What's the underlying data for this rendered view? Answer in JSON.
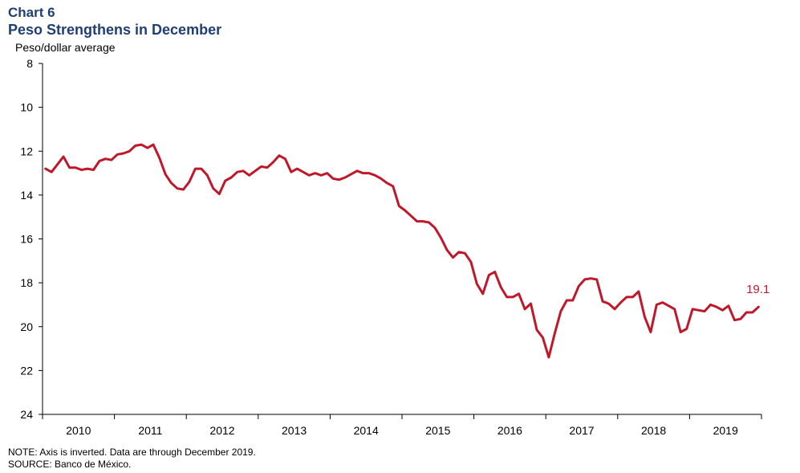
{
  "header": {
    "chart_label": "Chart 6",
    "title": "Peso Strengthens in December"
  },
  "footer": {
    "note": "NOTE: Axis is inverted.  Data are through December 2019.",
    "source": "SOURCE: Banco de México."
  },
  "colors": {
    "series": "#c0182b",
    "title": "#1f3f73"
  },
  "chart_data": {
    "type": "line",
    "ylabel": "Peso/dollar average",
    "ylim": [
      8,
      24
    ],
    "y_inverted": true,
    "yticks": [
      8,
      10,
      12,
      14,
      16,
      18,
      20,
      22,
      24
    ],
    "xlim": [
      "2010-01",
      "2019-12"
    ],
    "xtick_labels": [
      "2010",
      "2011",
      "2012",
      "2013",
      "2014",
      "2015",
      "2016",
      "2017",
      "2018",
      "2019"
    ],
    "grid": false,
    "annotation": "19.1",
    "series": [
      {
        "values": [
          12.8,
          12.95,
          12.6,
          12.25,
          12.75,
          12.75,
          12.85,
          12.8,
          12.85,
          12.45,
          12.35,
          12.4,
          12.15,
          12.1,
          12.0,
          11.75,
          11.7,
          11.85,
          11.7,
          12.3,
          13.05,
          13.45,
          13.7,
          13.75,
          13.4,
          12.8,
          12.8,
          13.1,
          13.7,
          13.95,
          13.35,
          13.2,
          12.95,
          12.9,
          13.1,
          12.9,
          12.7,
          12.75,
          12.5,
          12.2,
          12.35,
          12.95,
          12.8,
          12.95,
          13.1,
          13.0,
          13.1,
          13.0,
          13.25,
          13.3,
          13.2,
          13.05,
          12.9,
          13.0,
          13.0,
          13.1,
          13.25,
          13.45,
          13.6,
          14.5,
          14.7,
          14.95,
          15.2,
          15.2,
          15.25,
          15.5,
          15.95,
          16.5,
          16.85,
          16.6,
          16.65,
          17.05,
          18.05,
          18.5,
          17.65,
          17.5,
          18.2,
          18.65,
          18.65,
          18.5,
          19.2,
          18.95,
          20.15,
          20.5,
          21.4,
          20.3,
          19.3,
          18.8,
          18.8,
          18.15,
          17.85,
          17.8,
          17.85,
          18.85,
          18.95,
          19.2,
          18.9,
          18.65,
          18.65,
          18.4,
          19.55,
          20.25,
          19.0,
          18.9,
          19.05,
          19.2,
          20.25,
          20.1,
          19.2,
          19.25,
          19.3,
          19.0,
          19.1,
          19.25,
          19.05,
          19.7,
          19.65,
          19.35,
          19.35,
          19.1
        ]
      }
    ]
  }
}
